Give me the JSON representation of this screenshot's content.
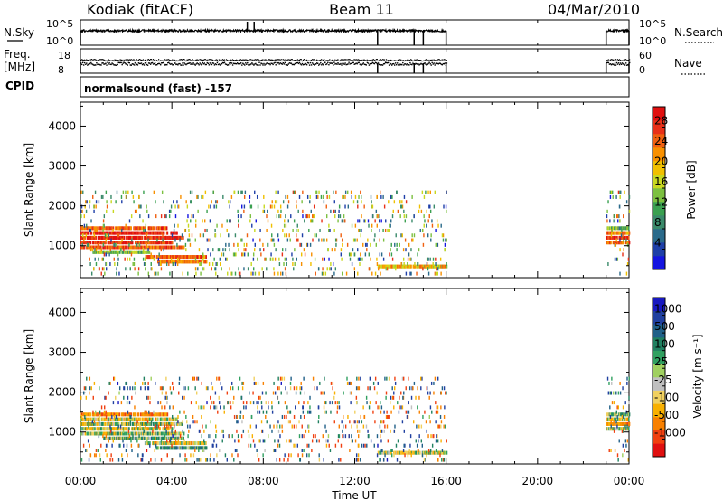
{
  "header": {
    "station": "Kodiak (fitACF)",
    "beam": "Beam 11",
    "date": "04/Mar/2010"
  },
  "noise_panel": {
    "left_label": "N.Sky",
    "right_label": "N.Search",
    "left_ticks": [
      "10^5",
      "10^0"
    ],
    "right_ticks": [
      "10^5",
      "10^0"
    ]
  },
  "freq_panel": {
    "left_label_line1": "Freq.",
    "left_label_line2": "[MHz]",
    "right_label": "Nave",
    "left_ticks": [
      "18",
      "8"
    ],
    "right_ticks": [
      "60",
      "0"
    ]
  },
  "cpid_panel": {
    "label": "CPID",
    "program": "normalsound (fast) -157"
  },
  "power_panel": {
    "ylabel": "Slant Range [km]",
    "yticks": [
      "4000",
      "3000",
      "2000",
      "1000"
    ],
    "colorbar_label": "Power [dB]",
    "colorbar_ticks": [
      "28",
      "24",
      "20",
      "16",
      "12",
      "8",
      "4"
    ],
    "colorbar_colors": [
      "#1515e0",
      "#1e3fa8",
      "#2a6a8a",
      "#3a8a6a",
      "#3aa050",
      "#7cc040",
      "#c8d820",
      "#f0c000",
      "#f89000",
      "#f06010",
      "#e83018",
      "#e01010"
    ]
  },
  "velocity_panel": {
    "ylabel": "Slant Range [km]",
    "yticks": [
      "4000",
      "3000",
      "2000",
      "1000"
    ],
    "colorbar_label": "Velocity [m s⁻¹]",
    "colorbar_ticks": [
      "1000",
      "500",
      "100",
      "25",
      "-25",
      "-100",
      "-500",
      "-1000"
    ],
    "colorbar_colors": [
      "#e01010",
      "#f04010",
      "#f88000",
      "#f8b000",
      "#f0d060",
      "#c0c0c0",
      "#a0d060",
      "#30a060",
      "#208060",
      "#206088",
      "#2040a0",
      "#1818c0"
    ]
  },
  "xaxis": {
    "label": "Time UT",
    "ticks": [
      "00:00",
      "04:00",
      "08:00",
      "12:00",
      "16:00",
      "20:00",
      "00:00"
    ]
  },
  "chart_data": {
    "type": "heatmap",
    "title": "Kodiak (fitACF)  Beam 11  04/Mar/2010",
    "xlabel": "Time UT",
    "ylabel": "Slant Range [km]",
    "x_range_hours": [
      0,
      24
    ],
    "y_range_km": [
      200,
      4600
    ],
    "data_coverage_hours": [
      [
        0,
        16
      ],
      [
        23,
        24
      ]
    ],
    "power_scale_db": [
      0,
      32
    ],
    "velocity_scale_ms": [
      -1000,
      1000
    ],
    "power_bands": [
      {
        "t_start": 0.0,
        "t_end": 3.8,
        "range_km": 1440,
        "power_db": 26
      },
      {
        "t_start": 0.0,
        "t_end": 4.2,
        "range_km": 1320,
        "power_db": 30
      },
      {
        "t_start": 0.0,
        "t_end": 4.5,
        "range_km": 1200,
        "power_db": 30
      },
      {
        "t_start": 0.0,
        "t_end": 4.0,
        "range_km": 1080,
        "power_db": 28
      },
      {
        "t_start": 0.0,
        "t_end": 4.5,
        "range_km": 960,
        "power_db": 26
      },
      {
        "t_start": 0.5,
        "t_end": 3.0,
        "range_km": 840,
        "power_db": 14
      },
      {
        "t_start": 2.8,
        "t_end": 5.5,
        "range_km": 720,
        "power_db": 26
      },
      {
        "t_start": 3.3,
        "t_end": 5.5,
        "range_km": 600,
        "power_db": 24
      },
      {
        "t_start": 13.0,
        "t_end": 16.0,
        "range_km": 480,
        "power_db": 20
      },
      {
        "t_start": 23.0,
        "t_end": 24.0,
        "range_km": 1440,
        "power_db": 12
      },
      {
        "t_start": 23.0,
        "t_end": 24.0,
        "range_km": 1320,
        "power_db": 24
      },
      {
        "t_start": 23.0,
        "t_end": 24.0,
        "range_km": 1200,
        "power_db": 30
      },
      {
        "t_start": 23.0,
        "t_end": 24.0,
        "range_km": 1080,
        "power_db": 26
      }
    ],
    "velocity_bands": [
      {
        "t_start": 0.0,
        "t_end": 3.8,
        "range_km": 1440,
        "velocity_ms": -300
      },
      {
        "t_start": 0.0,
        "t_end": 4.2,
        "range_km": 1320,
        "velocity_ms": -80
      },
      {
        "t_start": 0.0,
        "t_end": 4.5,
        "range_km": 1200,
        "velocity_ms": -20
      },
      {
        "t_start": 0.0,
        "t_end": 4.0,
        "range_km": 1080,
        "velocity_ms": -60
      },
      {
        "t_start": 0.0,
        "t_end": 4.5,
        "range_km": 960,
        "velocity_ms": 0
      },
      {
        "t_start": 1.0,
        "t_end": 4.5,
        "range_km": 840,
        "velocity_ms": 80
      },
      {
        "t_start": 2.8,
        "t_end": 5.5,
        "range_km": 720,
        "velocity_ms": -100
      },
      {
        "t_start": 3.3,
        "t_end": 5.5,
        "range_km": 600,
        "velocity_ms": 150
      },
      {
        "t_start": 13.0,
        "t_end": 16.0,
        "range_km": 480,
        "velocity_ms": -60
      },
      {
        "t_start": 23.0,
        "t_end": 24.0,
        "range_km": 1440,
        "velocity_ms": 40
      },
      {
        "t_start": 23.0,
        "t_end": 24.0,
        "range_km": 1320,
        "velocity_ms": -90
      },
      {
        "t_start": 23.0,
        "t_end": 24.0,
        "range_km": 1200,
        "velocity_ms": -300
      },
      {
        "t_start": 23.0,
        "t_end": 24.0,
        "range_km": 1080,
        "velocity_ms": 10
      }
    ]
  }
}
